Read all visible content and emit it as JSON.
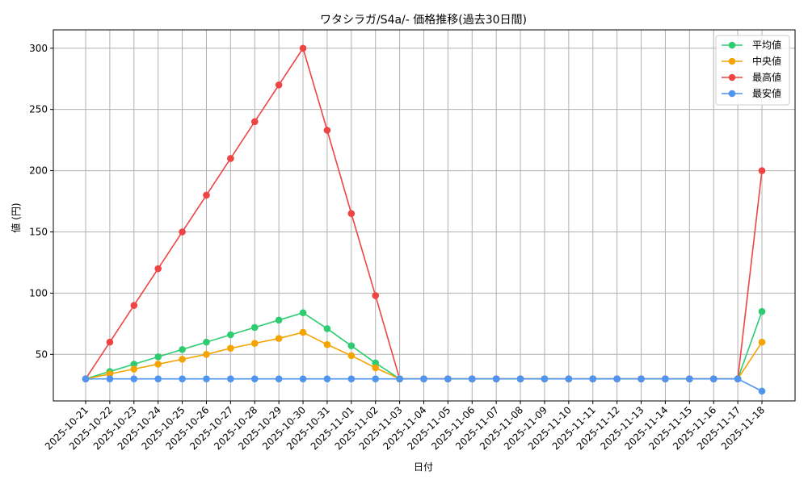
{
  "chart_data": {
    "type": "line",
    "title": "ワタシラガ/S4a/- 価格推移(過去30日間)",
    "xlabel": "日付",
    "ylabel": "値 (円)",
    "ylim": [
      12,
      315
    ],
    "yticks": [
      50,
      100,
      150,
      200,
      250,
      300
    ],
    "grid": true,
    "legend_position": "top-right",
    "categories": [
      "2025-10-21",
      "2025-10-22",
      "2025-10-23",
      "2025-10-24",
      "2025-10-25",
      "2025-10-26",
      "2025-10-27",
      "2025-10-28",
      "2025-10-29",
      "2025-10-30",
      "2025-10-31",
      "2025-11-01",
      "2025-11-02",
      "2025-11-03",
      "2025-11-04",
      "2025-11-05",
      "2025-11-06",
      "2025-11-07",
      "2025-11-08",
      "2025-11-09",
      "2025-11-10",
      "2025-11-11",
      "2025-11-12",
      "2025-11-13",
      "2025-11-14",
      "2025-11-15",
      "2025-11-16",
      "2025-11-17",
      "2025-11-18"
    ],
    "series": [
      {
        "name": "平均値",
        "color": "#2ecc71",
        "values": [
          30,
          36,
          42,
          48,
          54,
          60,
          66,
          72,
          78,
          84,
          71,
          57,
          43,
          30,
          30,
          30,
          30,
          30,
          30,
          30,
          30,
          30,
          30,
          30,
          30,
          30,
          30,
          30,
          85
        ]
      },
      {
        "name": "中央値",
        "color": "#f5a300",
        "values": [
          30,
          34,
          38,
          42,
          46,
          50,
          55,
          59,
          63,
          68,
          58,
          49,
          39,
          30,
          30,
          30,
          30,
          30,
          30,
          30,
          30,
          30,
          30,
          30,
          30,
          30,
          30,
          30,
          60
        ]
      },
      {
        "name": "最高値",
        "color": "#ef4444",
        "values": [
          30,
          60,
          90,
          120,
          150,
          180,
          210,
          240,
          270,
          300,
          233,
          165,
          98,
          30,
          30,
          30,
          30,
          30,
          30,
          30,
          30,
          30,
          30,
          30,
          30,
          30,
          30,
          30,
          200
        ]
      },
      {
        "name": "最安値",
        "color": "#4f94ef",
        "values": [
          30,
          30,
          30,
          30,
          30,
          30,
          30,
          30,
          30,
          30,
          30,
          30,
          30,
          30,
          30,
          30,
          30,
          30,
          30,
          30,
          30,
          30,
          30,
          30,
          30,
          30,
          30,
          30,
          20
        ]
      }
    ]
  }
}
